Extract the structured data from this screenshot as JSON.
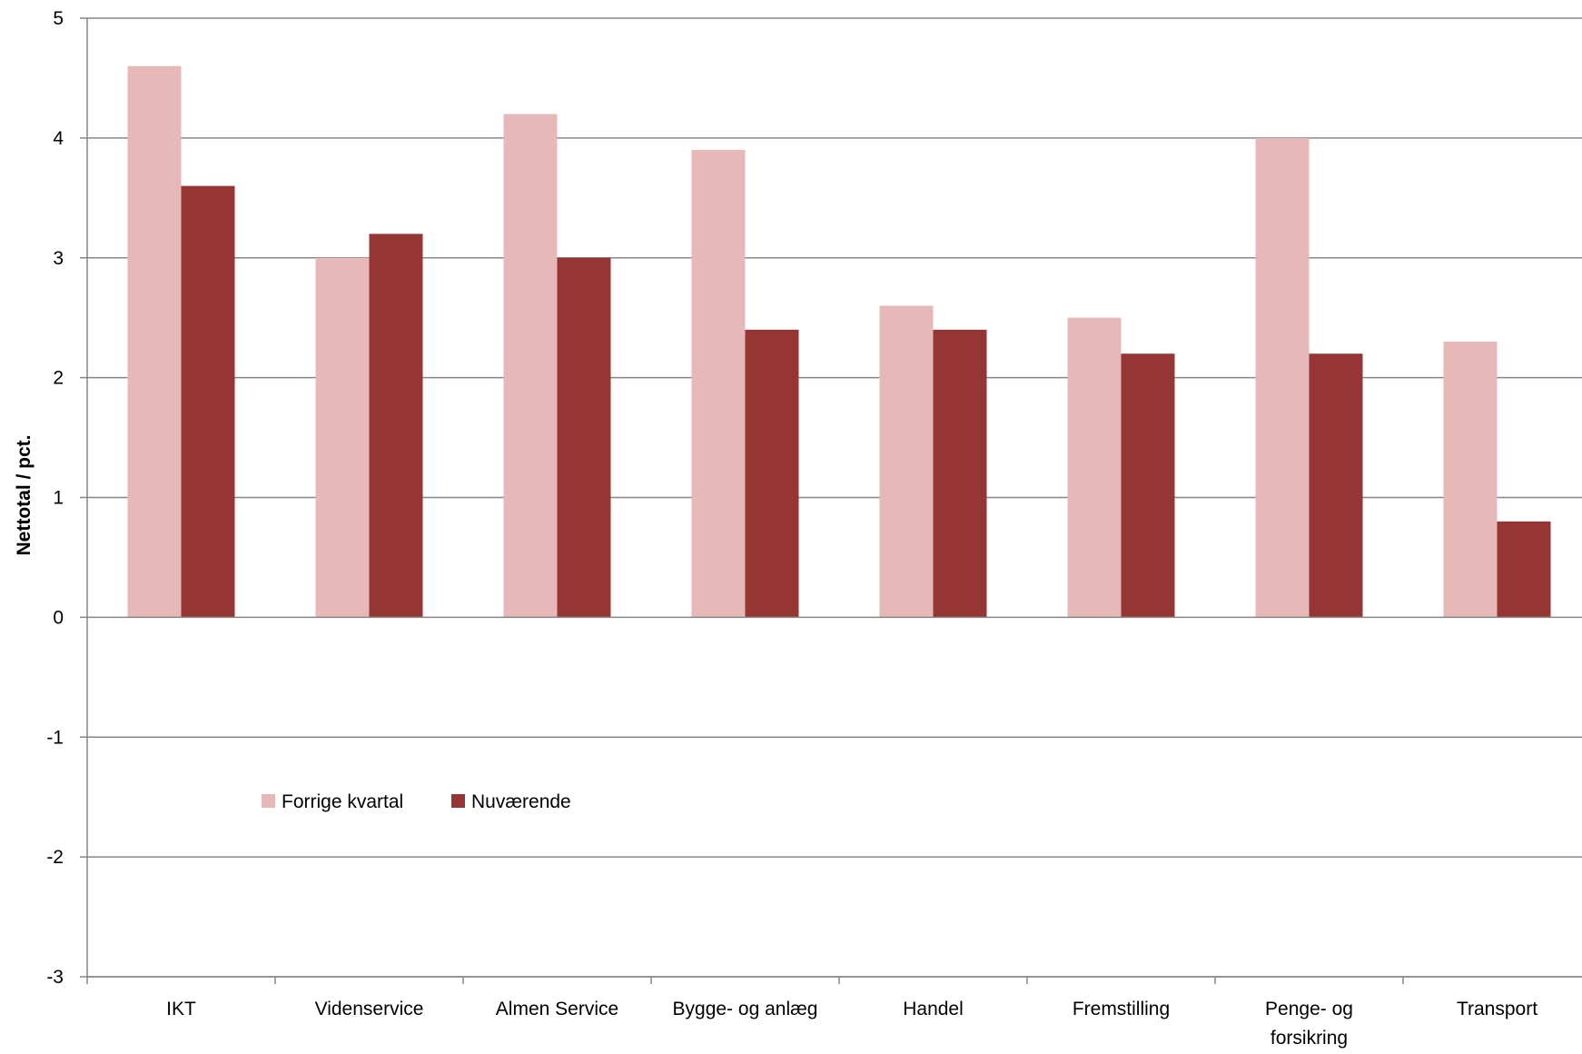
{
  "chart_data": {
    "type": "bar",
    "title": "",
    "xlabel": "",
    "ylabel": "Nettotal / pct.",
    "ylim": [
      -3,
      5
    ],
    "yticks": [
      -3,
      -2,
      -1,
      0,
      1,
      2,
      3,
      4,
      5
    ],
    "grid": true,
    "legend_position": "center-left",
    "categories": [
      [
        "IKT"
      ],
      [
        "Videnservice"
      ],
      [
        "Almen Service"
      ],
      [
        "Bygge- og anlæg"
      ],
      [
        "Handel"
      ],
      [
        "Fremstilling"
      ],
      [
        "Penge- og",
        "forsikring"
      ],
      [
        "Transport"
      ]
    ],
    "series": [
      {
        "name": "Forrige kvartal",
        "color": "#e6b8b7",
        "values": [
          4.6,
          3.0,
          4.2,
          3.9,
          2.6,
          2.5,
          4.0,
          2.3
        ]
      },
      {
        "name": "Nuværende",
        "color": "#963634",
        "values": [
          3.6,
          3.2,
          3.0,
          2.4,
          2.4,
          2.2,
          2.2,
          0.8
        ]
      }
    ],
    "gridline_color": "#868686",
    "axis_color": "#868686"
  }
}
